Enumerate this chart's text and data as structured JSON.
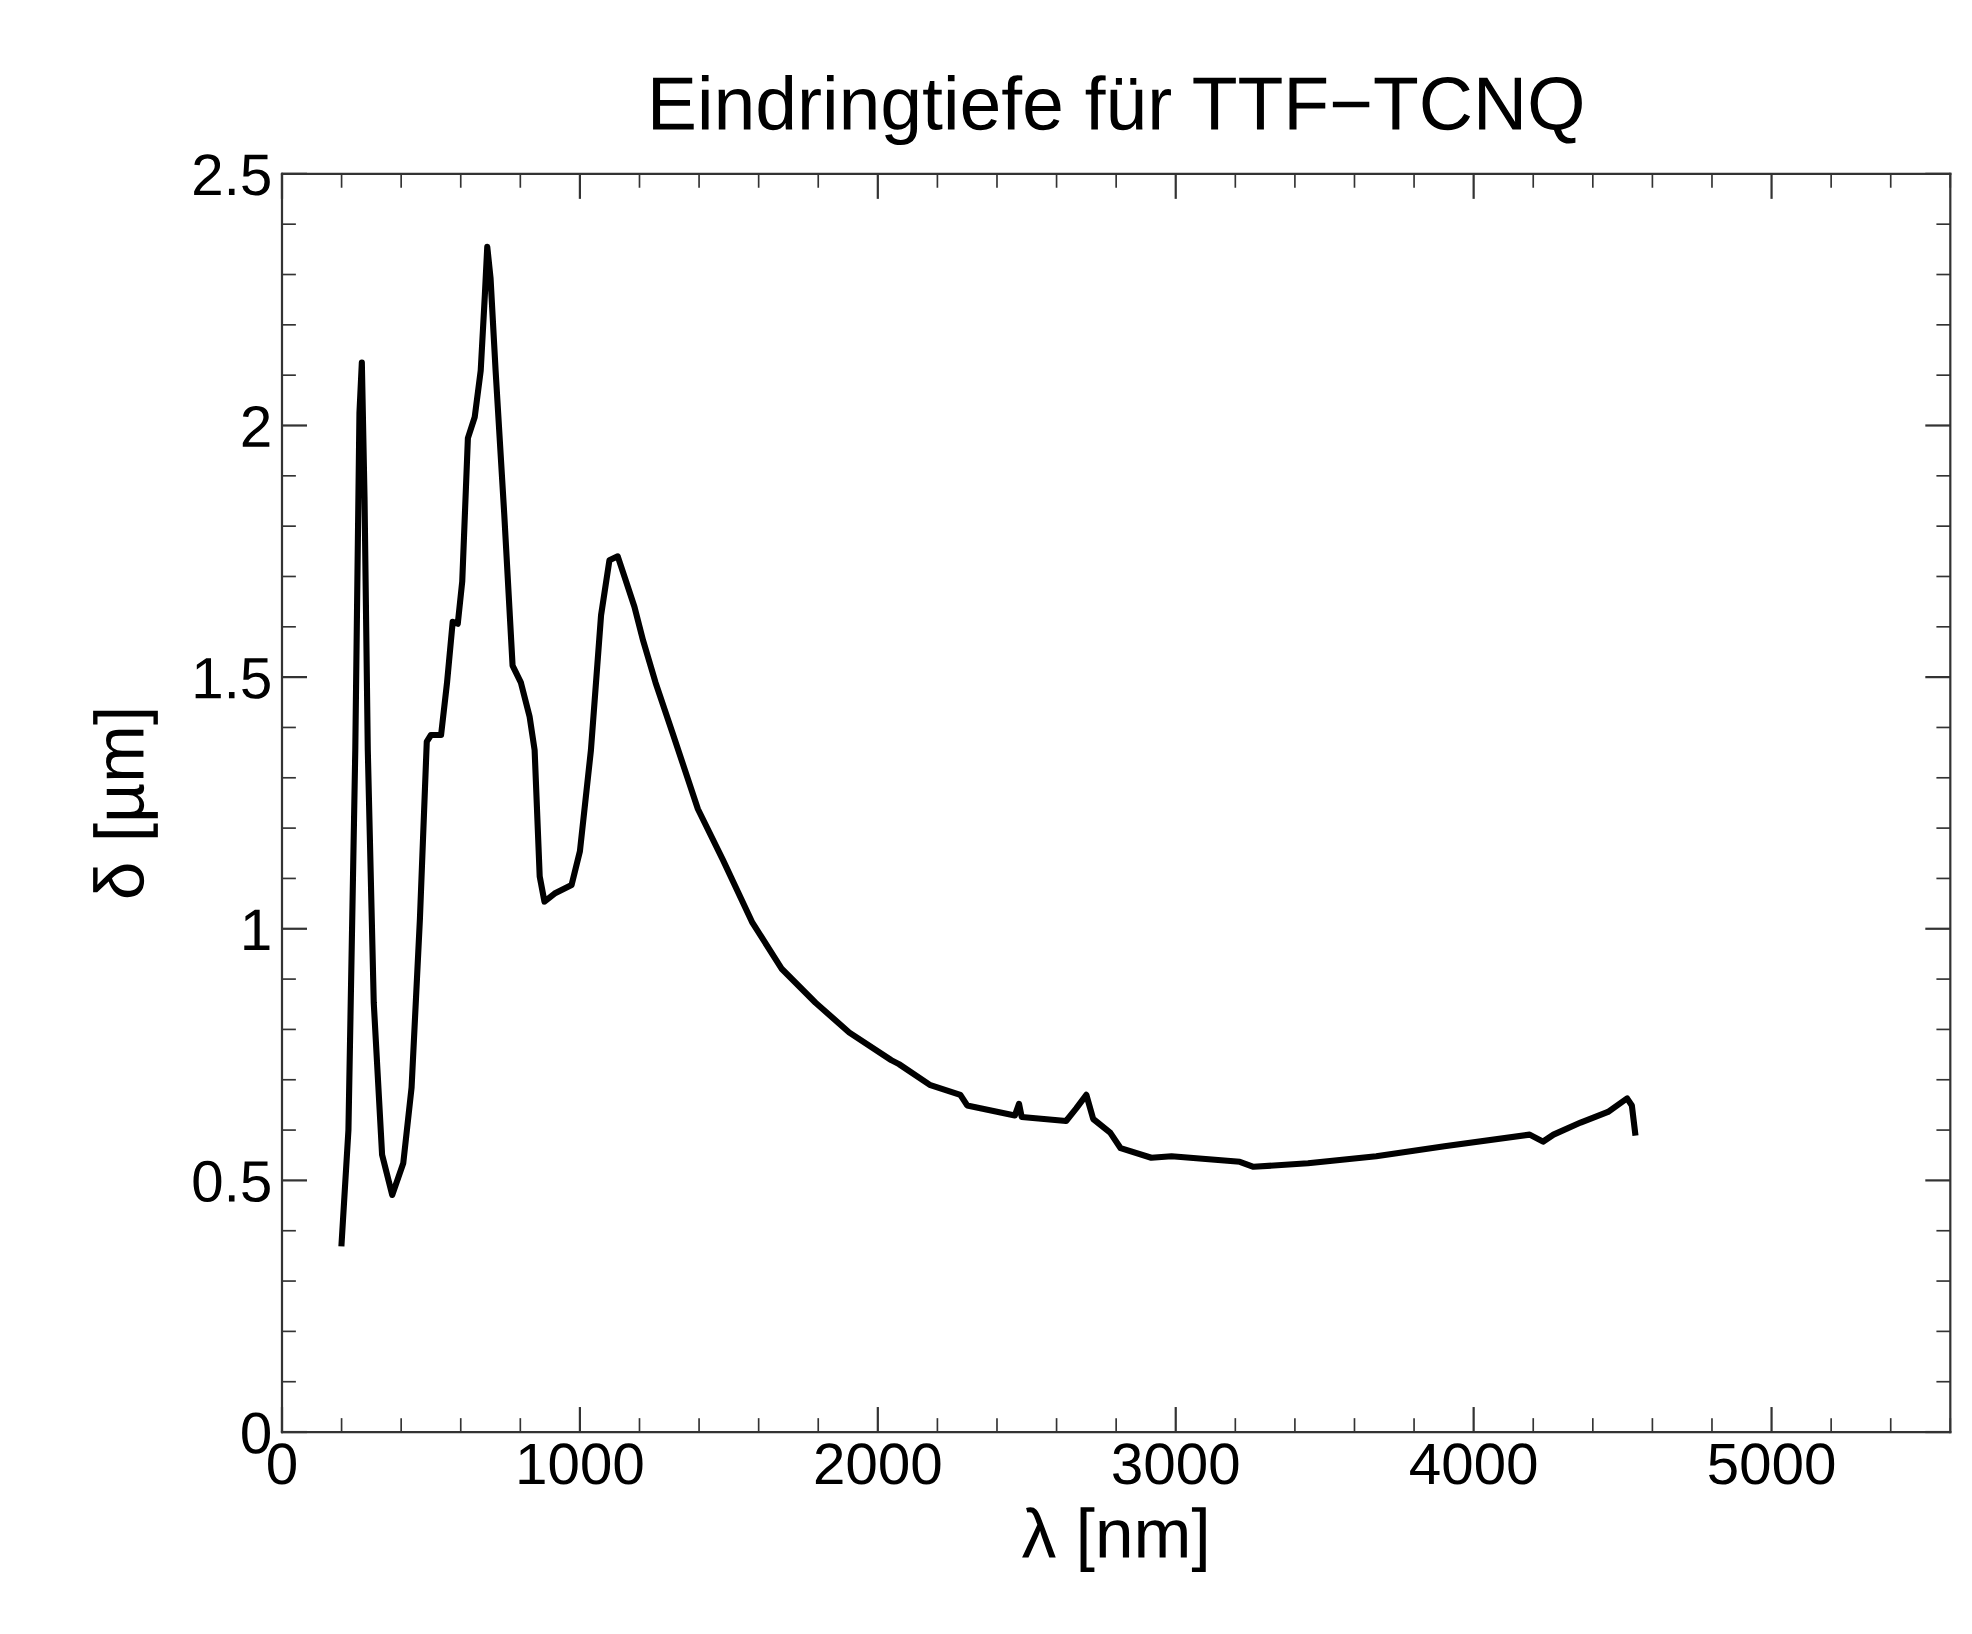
{
  "chart_data": {
    "type": "line",
    "title": "Eindringtiefe für TTF−TCNQ",
    "xlabel": "λ [nm]",
    "ylabel": "δ [µm]",
    "xlim": [
      0,
      5600
    ],
    "ylim": [
      0,
      2.5
    ],
    "xticks": [
      0,
      1000,
      2000,
      3000,
      4000,
      5000
    ],
    "yticks": [
      0,
      {
        "value": 0.5,
        "label": "0.5"
      },
      1,
      {
        "value": 1.5,
        "label": "1.5"
      },
      2,
      {
        "value": 2.5,
        "label": "2.5"
      }
    ],
    "grid": false,
    "legend": false,
    "marker": "none",
    "line_style": "solid",
    "series": [
      {
        "color": "#000000",
        "x": [
          200,
          223,
          246,
          260,
          268,
          277,
          288,
          308,
          336,
          370,
          407,
          435,
          463,
          486,
          500,
          534,
          554,
          573,
          590,
          605,
          624,
          647,
          667,
          681,
          689,
          700,
          717,
          746,
          774,
          802,
          831,
          848,
          865,
          881,
          915,
          972,
          1000,
          1037,
          1071,
          1099,
          1127,
          1155,
          1183,
          1212,
          1254,
          1311,
          1396,
          1480,
          1579,
          1678,
          1791,
          1904,
          2045,
          2071,
          2174,
          2277,
          2300,
          2460,
          2474,
          2483,
          2632,
          2666,
          2700,
          2723,
          2780,
          2815,
          2918,
          2986,
          3215,
          3261,
          3444,
          3673,
          3902,
          4188,
          4233,
          4268,
          4359,
          4451,
          4515,
          4531,
          4542
        ],
        "values": [
          0.375,
          0.6,
          1.355,
          2.025,
          2.125,
          1.858,
          1.355,
          0.853,
          0.551,
          0.471,
          0.534,
          0.685,
          1.02,
          1.372,
          1.385,
          1.385,
          1.489,
          1.61,
          1.606,
          1.69,
          1.975,
          2.017,
          2.109,
          2.26,
          2.355,
          2.293,
          2.109,
          1.824,
          1.523,
          1.489,
          1.422,
          1.355,
          1.104,
          1.054,
          1.07,
          1.087,
          1.154,
          1.355,
          1.623,
          1.732,
          1.74,
          1.69,
          1.64,
          1.573,
          1.489,
          1.389,
          1.238,
          1.137,
          1.012,
          0.92,
          0.853,
          0.794,
          0.739,
          0.731,
          0.69,
          0.67,
          0.649,
          0.629,
          0.652,
          0.626,
          0.618,
          0.643,
          0.67,
          0.622,
          0.595,
          0.564,
          0.545,
          0.548,
          0.537,
          0.527,
          0.534,
          0.548,
          0.568,
          0.591,
          0.577,
          0.591,
          0.615,
          0.636,
          0.663,
          0.649,
          0.595
        ]
      }
    ]
  }
}
